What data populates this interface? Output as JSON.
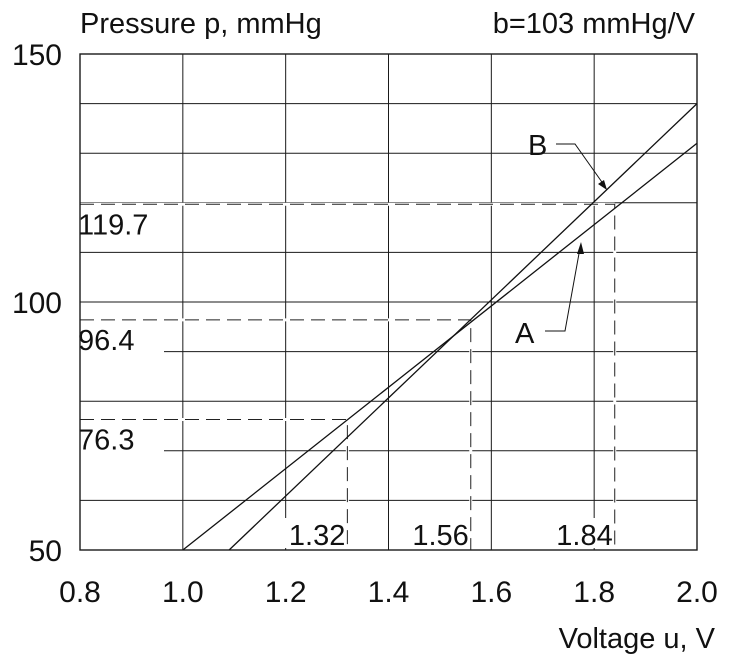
{
  "chart_data": {
    "type": "line",
    "ylabel": "Pressure p, mmHg",
    "xlabel": "Voltage u, V",
    "subtitle": "b=103 mmHg/V",
    "xlim": [
      0.8,
      2.0
    ],
    "ylim": [
      50,
      150
    ],
    "x_ticks": [
      "0.8",
      "1.0",
      "1.2",
      "1.4",
      "1.6",
      "1.8",
      "2.0"
    ],
    "y_ticks": [
      "50",
      "100",
      "150"
    ],
    "x_tick_values": [
      0.8,
      1.0,
      1.2,
      1.4,
      1.6,
      1.8,
      2.0
    ],
    "y_tick_values": [
      50,
      100,
      150
    ],
    "x_grid": [
      0.8,
      1.0,
      1.2,
      1.4,
      1.6,
      1.8,
      2.0
    ],
    "y_grid": [
      50,
      60,
      70,
      80,
      90,
      100,
      110,
      120,
      130,
      140,
      150
    ],
    "grid": true,
    "series": [
      {
        "name": "A",
        "x": [
          1.0,
          2.0
        ],
        "y": [
          50,
          132
        ]
      },
      {
        "name": "B",
        "x": [
          1.09,
          2.0
        ],
        "y": [
          50,
          140
        ]
      }
    ],
    "reference_points": [
      {
        "x": 1.32,
        "y": 76.3,
        "x_label": "1.32",
        "y_label": "76.3"
      },
      {
        "x": 1.56,
        "y": 96.4,
        "x_label": "1.56",
        "y_label": "96.4"
      },
      {
        "x": 1.84,
        "y": 119.7,
        "x_label": "1.84",
        "y_label": "119.7"
      }
    ],
    "annotations": [
      {
        "text": "A",
        "target_series": "A"
      },
      {
        "text": "B",
        "target_series": "B"
      }
    ]
  }
}
